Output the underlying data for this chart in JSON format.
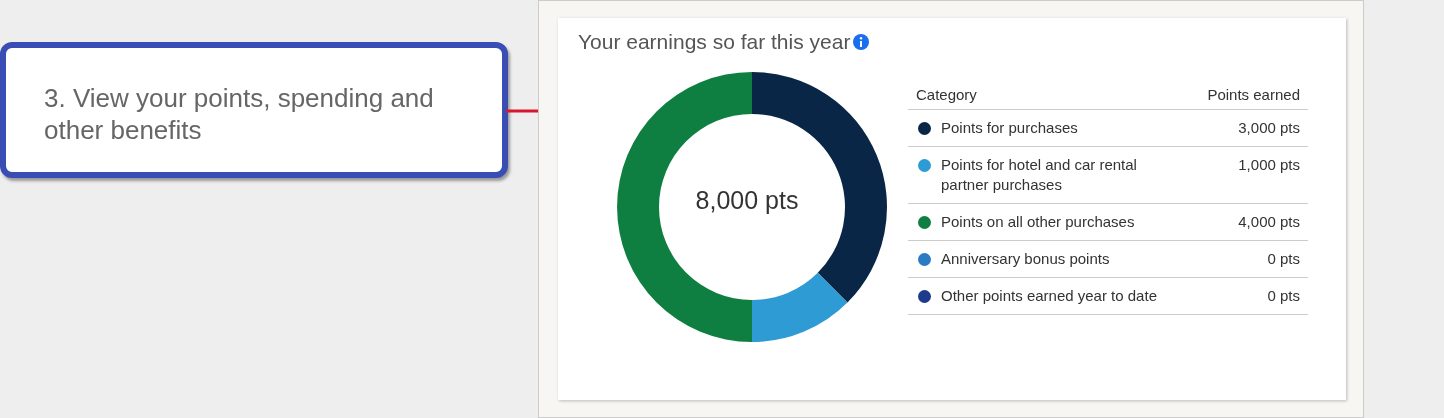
{
  "chart_data": {
    "type": "donut",
    "title": "Your earnings so far this year",
    "categories": [
      "Points for purchases",
      "Points for hotel and car rental partner purchases",
      "Points on all other purchases",
      "Anniversary bonus points",
      "Other points earned year to date"
    ],
    "values": [
      3000,
      1000,
      4000,
      0,
      0
    ],
    "colors": [
      "#0a2647",
      "#2e9bd4",
      "#0e7f40",
      "#2a7bbf",
      "#1e3a8a"
    ],
    "value_labels": [
      "3,000 pts",
      "1,000 pts",
      "4,000 pts",
      "0 pts",
      "0 pts"
    ],
    "legend": "right",
    "annotations": [
      "3. View your points, spending and other benefits",
      "8,000 pts",
      "Category",
      "Points earned"
    ]
  }
}
